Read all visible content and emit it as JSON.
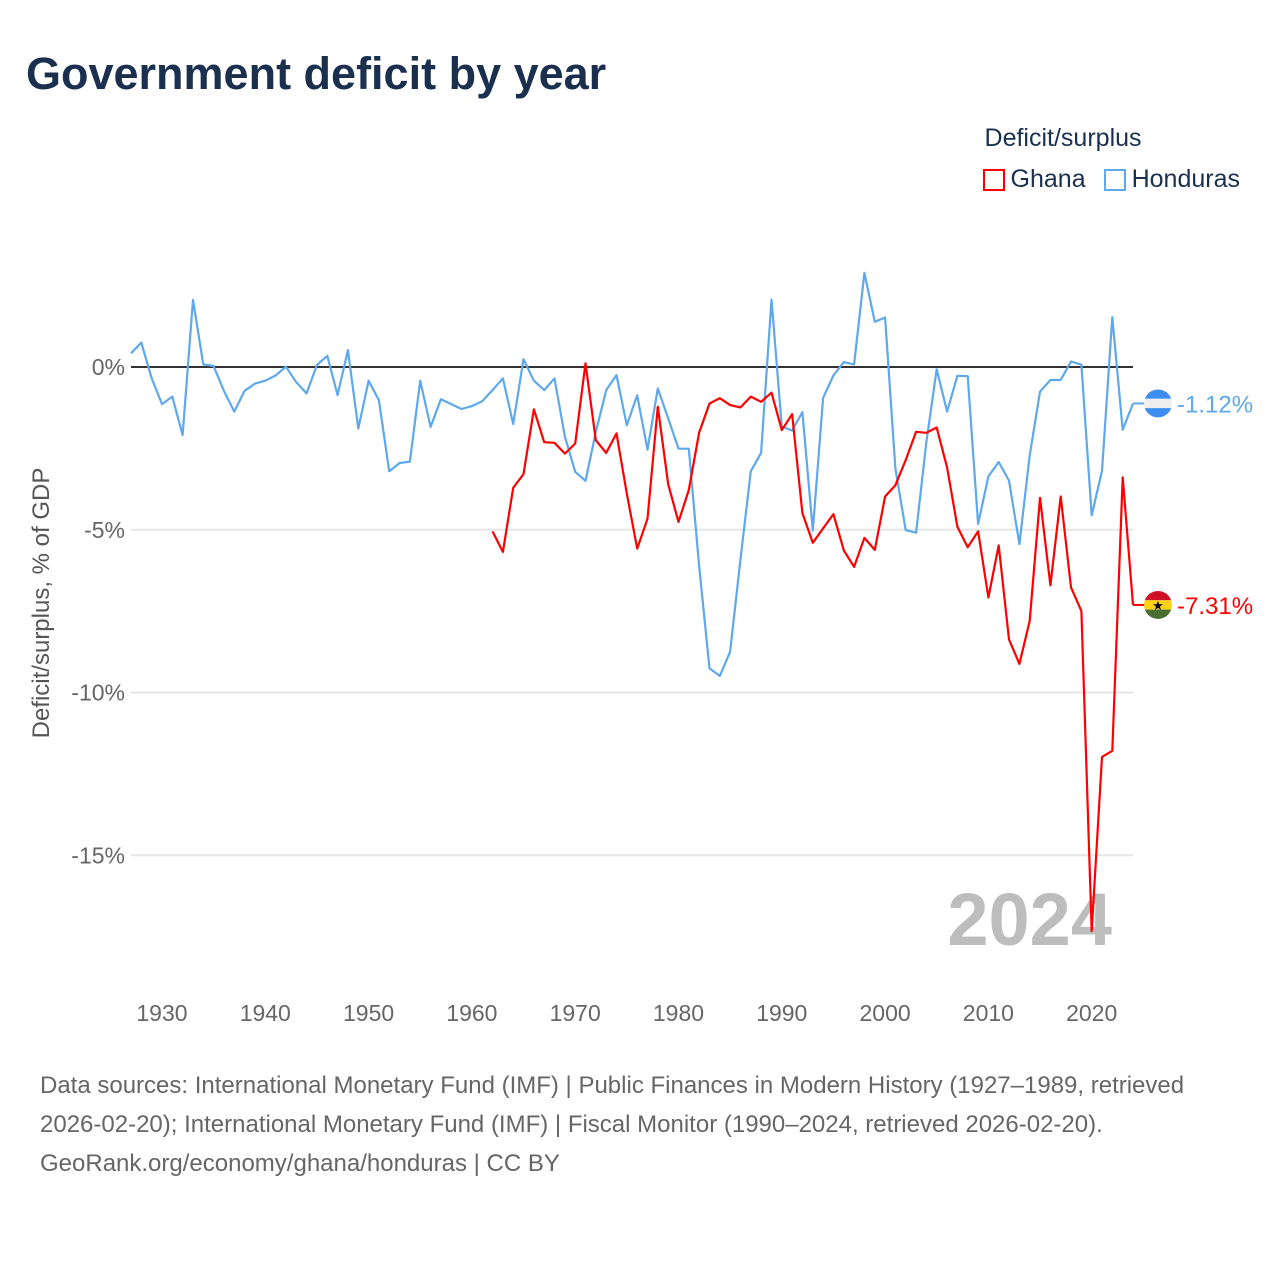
{
  "title": "Government deficit by year",
  "legend": {
    "title": "Deficit/surplus"
  },
  "footer": {
    "sources": "Data sources: International Monetary Fund (IMF) | Public Finances in Modern History (1927–1989, retrieved 2026-02-20); International Monetary Fund (IMF) | Fiscal Monitor (1990–2024, retrieved 2026-02-20).",
    "credit": "GeoRank.org/economy/ghana/honduras | CC BY"
  },
  "chart_data": {
    "type": "line",
    "title": "Government deficit by year",
    "xlabel": "",
    "ylabel": "Deficit/surplus, % of GDP",
    "xlim": [
      1927,
      2024
    ],
    "ylim": [
      -17.5,
      3
    ],
    "x_ticks": [
      1930,
      1940,
      1950,
      1960,
      1970,
      1980,
      1990,
      2000,
      2010,
      2020
    ],
    "y_ticks": [
      0,
      -5,
      -10,
      -15
    ],
    "y_tick_labels": [
      "0%",
      "-5%",
      "-10%",
      "-15%"
    ],
    "year_label": "2024",
    "legend_position": "top-right",
    "series": [
      {
        "name": "Ghana",
        "color": "#ff0000",
        "end_label": "-7.31%",
        "flag": "ghana-flag",
        "start_year": 1962,
        "values": [
          -5.05,
          -5.68,
          -3.71,
          -3.29,
          -1.3,
          -2.31,
          -2.33,
          -2.66,
          -2.35,
          0.11,
          -2.25,
          -2.64,
          -2.04,
          -3.89,
          -5.58,
          -4.66,
          -1.22,
          -3.6,
          -4.76,
          -3.78,
          -2.02,
          -1.12,
          -0.96,
          -1.17,
          -1.24,
          -0.91,
          -1.07,
          -0.79,
          -1.94,
          -1.45,
          -4.49,
          -5.4,
          -4.96,
          -4.52,
          -5.63,
          -6.14,
          -5.25,
          -5.62,
          -3.98,
          -3.63,
          -2.86,
          -1.99,
          -2.02,
          -1.86,
          -3.09,
          -4.91,
          -5.54,
          -5.05,
          -7.08,
          -5.48,
          -8.37,
          -9.12,
          -7.8,
          -4.02,
          -6.71,
          -3.98,
          -6.77,
          -7.5,
          -17.33,
          -11.98,
          -11.79,
          -3.39,
          -7.31
        ]
      },
      {
        "name": "Honduras",
        "color": "#5ea8ec",
        "end_label": "-1.12%",
        "flag": "honduras-flag",
        "start_year": 1927,
        "values": [
          0.42,
          0.75,
          -0.35,
          -1.14,
          -0.91,
          -2.09,
          2.06,
          0.08,
          0.03,
          -0.74,
          -1.37,
          -0.73,
          -0.51,
          -0.42,
          -0.26,
          0.01,
          -0.47,
          -0.81,
          0.06,
          0.34,
          -0.86,
          0.52,
          -1.89,
          -0.42,
          -1.02,
          -3.2,
          -2.95,
          -2.91,
          -0.42,
          -1.84,
          -0.99,
          -1.14,
          -1.29,
          -1.2,
          -1.05,
          -0.71,
          -0.35,
          -1.75,
          0.24,
          -0.42,
          -0.71,
          -0.35,
          -2.14,
          -3.22,
          -3.5,
          -2.0,
          -0.71,
          -0.25,
          -1.79,
          -0.87,
          -2.54,
          -0.66,
          -1.58,
          -2.51,
          -2.51,
          -6.1,
          -9.26,
          -9.49,
          -8.75,
          -5.9,
          -3.2,
          -2.64,
          2.07,
          -1.83,
          -1.95,
          -1.39,
          -5.03,
          -0.95,
          -0.26,
          0.15,
          0.08,
          2.89,
          1.39,
          1.52,
          -3.12,
          -5.01,
          -5.09,
          -2.3,
          -0.07,
          -1.37,
          -0.27,
          -0.28,
          -4.82,
          -3.36,
          -2.92,
          -3.49,
          -5.44,
          -2.72,
          -0.76,
          -0.4,
          -0.4,
          0.17,
          0.07,
          -4.56,
          -3.19,
          1.53,
          -1.93,
          -1.12
        ]
      }
    ]
  }
}
